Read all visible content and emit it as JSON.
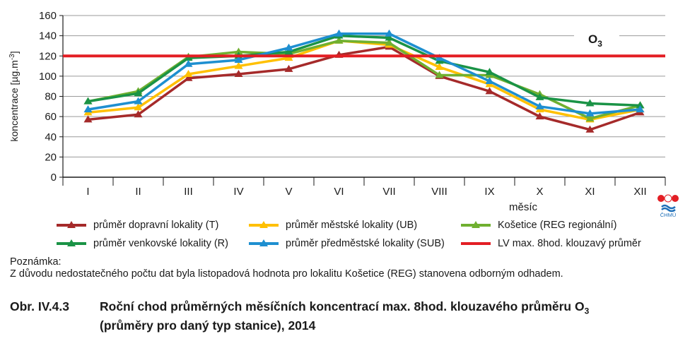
{
  "chart_data": {
    "type": "line",
    "title": "O3",
    "xlabel": "měsíc",
    "ylabel": "koncentrace [µg.m-3]",
    "ylim": [
      0,
      160
    ],
    "yticks": [
      0,
      20,
      40,
      60,
      80,
      100,
      120,
      140,
      160
    ],
    "categories": [
      "I",
      "II",
      "III",
      "IV",
      "V",
      "VI",
      "VII",
      "VIII",
      "IX",
      "X",
      "XI",
      "XII"
    ],
    "grid": "horizontal",
    "legend_position": "bottom",
    "series": [
      {
        "name": "průměr dopravní lokality (T)",
        "color": "#a52a2a",
        "marker": "triangle",
        "values": [
          57,
          62,
          98,
          102,
          107,
          121,
          129,
          100,
          85,
          60,
          47,
          64
        ]
      },
      {
        "name": "průměr městské lokality (UB)",
        "color": "#ffc000",
        "marker": "triangle",
        "values": [
          64,
          69,
          102,
          110,
          118,
          135,
          131,
          109,
          92,
          67,
          57,
          67
        ]
      },
      {
        "name": "Košetice (REG regionální)",
        "color": "#70b030",
        "marker": "triangle",
        "values": [
          75,
          85,
          119,
          124,
          122,
          135,
          133,
          101,
          101,
          82,
          58,
          71
        ]
      },
      {
        "name": "průměr venkovské lokality (R)",
        "color": "#1a9346",
        "marker": "triangle",
        "values": [
          75,
          83,
          118,
          120,
          124,
          140,
          138,
          115,
          104,
          79,
          73,
          71
        ]
      },
      {
        "name": "průměr předměstské lokality (SUB)",
        "color": "#1e8fd0",
        "marker": "triangle",
        "values": [
          67,
          75,
          112,
          116,
          128,
          142,
          142,
          118,
          95,
          70,
          63,
          67
        ]
      },
      {
        "name": "LV max. 8hod. klouzavý průměr",
        "color": "#e31e24",
        "marker": "none",
        "values": [
          120,
          120,
          120,
          120,
          120,
          120,
          120,
          120,
          120,
          120,
          120,
          120
        ]
      }
    ],
    "annotations": {
      "series_label": "O",
      "series_label_sub": "3"
    }
  },
  "note": {
    "label": "Poznámka:",
    "text": "Z důvodu nedostatečného počtu dat byla listopadová hodnota pro lokalitu Košetice (REG) stanovena odborným odhadem."
  },
  "caption": {
    "prefix": "Obr. IV.4.3",
    "line1": "Roční chod průměrných měsíčních koncentrací max. 8hod. klouzavého průměru O",
    "line1_sub": "3",
    "line2": "(průměry pro daný typ stanice), 2014"
  },
  "logo": {
    "text": "ČHMÚ",
    "colors": [
      "#e31e24",
      "#1e6fb8"
    ]
  }
}
